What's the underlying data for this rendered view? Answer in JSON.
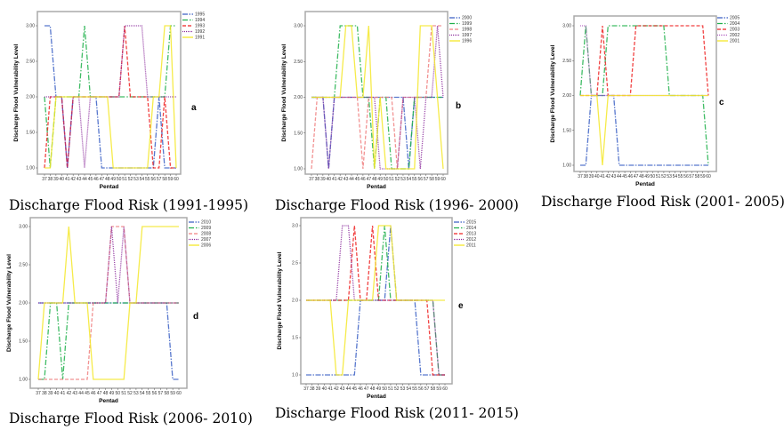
{
  "chart_data": [
    {
      "type": "line",
      "panel_label": "a",
      "caption": "Discharge Flood Risk (1991-1995)",
      "xlabel": "Pentad",
      "ylabel": "Discharge Flood Vulnerability Level",
      "x": [
        37,
        38,
        39,
        40,
        41,
        42,
        43,
        44,
        45,
        46,
        47,
        48,
        49,
        50,
        51,
        52,
        53,
        54,
        55,
        56,
        57,
        58,
        59,
        60
      ],
      "ylim": [
        1,
        3
      ],
      "yticks": [
        "1.00",
        "1.50",
        "2.00",
        "2.50",
        "3.00"
      ],
      "grid": false,
      "legend": "top-right",
      "series": [
        {
          "name": "1995",
          "color": "#3a5fc4",
          "values": [
            3,
            3,
            2,
            2,
            1,
            2,
            2,
            2,
            2,
            2,
            1,
            1,
            1,
            1,
            1,
            1,
            1,
            1,
            1,
            1,
            2,
            1,
            1,
            1
          ]
        },
        {
          "name": "1994",
          "color": "#1fb04a",
          "values": [
            2,
            1,
            2,
            2,
            2,
            2,
            2,
            3,
            2,
            2,
            2,
            2,
            2,
            2,
            2,
            2,
            2,
            2,
            2,
            2,
            2,
            2,
            3,
            3
          ]
        },
        {
          "name": "1993",
          "color": "#ee2222",
          "values": [
            1,
            2,
            2,
            2,
            1,
            2,
            2,
            2,
            2,
            2,
            2,
            2,
            2,
            2,
            3,
            2,
            2,
            2,
            2,
            1,
            1,
            2,
            1,
            1
          ]
        },
        {
          "name": "1992",
          "color": "#8b2a9b",
          "values": [
            2,
            2,
            2,
            2,
            1,
            2,
            2,
            1,
            2,
            2,
            2,
            2,
            2,
            2,
            3,
            3,
            3,
            3,
            2,
            2,
            2,
            2,
            2,
            2
          ]
        },
        {
          "name": "1991",
          "color": "#f5e82a",
          "values": [
            1,
            1,
            2,
            2,
            2,
            2,
            2,
            2,
            2,
            2,
            2,
            2,
            1,
            1,
            1,
            1,
            1,
            1,
            1,
            2,
            2,
            3,
            3,
            1
          ]
        }
      ]
    },
    {
      "type": "line",
      "panel_label": "b",
      "caption": "Discharge Flood Risk (1996- 2000)",
      "xlabel": "Pentad",
      "ylabel": "Discharge Flood Vulnerability Level",
      "x": [
        37,
        38,
        39,
        40,
        41,
        42,
        43,
        44,
        45,
        46,
        47,
        48,
        49,
        50,
        51,
        52,
        53,
        54,
        55,
        56,
        57,
        58,
        59,
        60
      ],
      "ylim": [
        1,
        3
      ],
      "yticks": [
        "1.00",
        "1.50",
        "2.00",
        "2.50",
        "3.00"
      ],
      "grid": false,
      "legend": "top-right",
      "series": [
        {
          "name": "2000",
          "color": "#3a5fc4",
          "values": [
            2,
            2,
            2,
            1,
            2,
            2,
            2,
            2,
            2,
            2,
            2,
            2,
            2,
            2,
            2,
            2,
            2,
            1,
            2,
            2,
            2,
            2,
            2,
            2
          ]
        },
        {
          "name": "1999",
          "color": "#1fb04a",
          "values": [
            2,
            2,
            2,
            2,
            2,
            3,
            3,
            3,
            3,
            2,
            2,
            1,
            2,
            2,
            1,
            1,
            1,
            1,
            2,
            2,
            2,
            2,
            2,
            2
          ]
        },
        {
          "name": "1998",
          "color": "#f08080",
          "values": [
            1,
            2,
            2,
            2,
            2,
            2,
            2,
            2,
            2,
            1,
            2,
            2,
            2,
            2,
            2,
            1,
            2,
            2,
            2,
            2,
            2,
            3,
            3,
            3
          ]
        },
        {
          "name": "1997",
          "color": "#8b2a9b",
          "values": [
            2,
            2,
            2,
            1,
            2,
            2,
            2,
            2,
            2,
            2,
            2,
            2,
            1,
            1,
            1,
            1,
            2,
            2,
            2,
            1,
            2,
            2,
            3,
            2
          ]
        },
        {
          "name": "1996",
          "color": "#f5e82a",
          "values": [
            2,
            2,
            2,
            2,
            2,
            2,
            3,
            3,
            2,
            2,
            3,
            1,
            2,
            1,
            1,
            1,
            1,
            1,
            1,
            3,
            3,
            3,
            2,
            1
          ]
        }
      ]
    },
    {
      "type": "line",
      "panel_label": "c",
      "caption": "Discharge Flood Risk (2001- 2005)",
      "xlabel": "Pentad",
      "ylabel": "Discharge Flood Vulnerability Level",
      "x": [
        37,
        38,
        39,
        40,
        41,
        42,
        43,
        44,
        45,
        46,
        47,
        48,
        49,
        50,
        51,
        52,
        53,
        54,
        55,
        56,
        57,
        58,
        59,
        60
      ],
      "ylim": [
        1,
        3
      ],
      "yticks": [
        "1.00",
        "1.50",
        "2.00",
        "2.50",
        "3.00"
      ],
      "grid": false,
      "legend": "top-right",
      "series": [
        {
          "name": "2005",
          "color": "#3a5fc4",
          "values": [
            1,
            1,
            2,
            2,
            2,
            2,
            2,
            1,
            1,
            1,
            1,
            1,
            1,
            1,
            1,
            1,
            1,
            1,
            1,
            1,
            1,
            1,
            1,
            1
          ]
        },
        {
          "name": "2004",
          "color": "#1fb04a",
          "values": [
            2,
            3,
            2,
            2,
            2,
            3,
            3,
            3,
            3,
            3,
            3,
            3,
            3,
            3,
            3,
            3,
            2,
            2,
            2,
            2,
            2,
            2,
            2,
            1
          ]
        },
        {
          "name": "2003",
          "color": "#ee2222",
          "values": [
            2,
            2,
            2,
            2,
            3,
            2,
            2,
            2,
            2,
            2,
            3,
            3,
            3,
            3,
            3,
            3,
            3,
            3,
            3,
            3,
            3,
            3,
            3,
            2
          ]
        },
        {
          "name": "2002",
          "color": "#b05ac0",
          "values": [
            3,
            3,
            2,
            2,
            2,
            2,
            2,
            2,
            2,
            2,
            2,
            2,
            2,
            2,
            2,
            2,
            2,
            2,
            2,
            2,
            2,
            2,
            2,
            2
          ]
        },
        {
          "name": "2001",
          "color": "#f5e82a",
          "values": [
            2,
            2,
            2,
            2,
            1,
            2,
            2,
            2,
            2,
            2,
            2,
            2,
            2,
            2,
            2,
            2,
            2,
            2,
            2,
            2,
            2,
            2,
            2,
            2
          ]
        }
      ]
    },
    {
      "type": "line",
      "panel_label": "d",
      "caption": "Discharge Flood Risk (2006- 2010)",
      "xlabel": "Pentad",
      "ylabel": "Discharge Flood Vulnerability Level",
      "x": [
        37,
        38,
        39,
        40,
        41,
        42,
        43,
        44,
        45,
        46,
        47,
        48,
        49,
        50,
        51,
        52,
        53,
        54,
        55,
        56,
        57,
        58,
        59,
        60
      ],
      "ylim": [
        1,
        3
      ],
      "yticks": [
        "1.00",
        "1.50",
        "2.00",
        "2.50",
        "3.00"
      ],
      "grid": false,
      "legend": "top-right",
      "series": [
        {
          "name": "2010",
          "color": "#3a5fc4",
          "values": [
            2,
            2,
            2,
            2,
            2,
            2,
            2,
            2,
            2,
            2,
            2,
            2,
            2,
            2,
            2,
            2,
            2,
            2,
            2,
            2,
            2,
            2,
            1,
            1
          ]
        },
        {
          "name": "2009",
          "color": "#1fb04a",
          "values": [
            1,
            1,
            2,
            2,
            1,
            2,
            2,
            2,
            2,
            2,
            2,
            2,
            2,
            2,
            2,
            2,
            2,
            2,
            2,
            2,
            2,
            2,
            2,
            2
          ]
        },
        {
          "name": "2008",
          "color": "#f08080",
          "values": [
            1,
            1,
            1,
            1,
            1,
            1,
            1,
            1,
            1,
            2,
            2,
            2,
            3,
            3,
            3,
            2,
            2,
            2,
            2,
            2,
            2,
            2,
            2,
            2
          ]
        },
        {
          "name": "2007",
          "color": "#8b2a9b",
          "values": [
            2,
            2,
            2,
            2,
            2,
            2,
            2,
            2,
            2,
            2,
            2,
            2,
            3,
            2,
            3,
            2,
            2,
            2,
            2,
            2,
            2,
            2,
            2,
            2
          ]
        },
        {
          "name": "2006",
          "color": "#f5e82a",
          "values": [
            1,
            2,
            2,
            2,
            2,
            3,
            2,
            2,
            2,
            1,
            1,
            1,
            1,
            1,
            1,
            2,
            2,
            3,
            3,
            3,
            3,
            3,
            3,
            3
          ]
        }
      ]
    },
    {
      "type": "line",
      "panel_label": "e",
      "caption": "Discharge Flood Risk (2011- 2015)",
      "xlabel": "Pentad",
      "ylabel": "Discharge Flood Vulnerability Level",
      "x": [
        37,
        38,
        39,
        40,
        41,
        42,
        43,
        44,
        45,
        46,
        47,
        48,
        49,
        50,
        51,
        52,
        53,
        54,
        55,
        56,
        57,
        58,
        59,
        60
      ],
      "ylim": [
        1,
        3
      ],
      "yticks": [
        "1.0",
        "1.5",
        "2.0",
        "2.5",
        "3.0"
      ],
      "grid": false,
      "legend": "top-right",
      "series": [
        {
          "name": "2015",
          "color": "#3a5fc4",
          "values": [
            1,
            1,
            1,
            1,
            1,
            1,
            1,
            1,
            1,
            2,
            2,
            2,
            2,
            2,
            3,
            2,
            2,
            2,
            2,
            1,
            1,
            1,
            1,
            1
          ]
        },
        {
          "name": "2014",
          "color": "#1fb04a",
          "values": [
            2,
            2,
            2,
            2,
            2,
            2,
            2,
            2,
            2,
            2,
            2,
            2,
            2,
            3,
            2,
            2,
            2,
            2,
            2,
            2,
            2,
            2,
            1,
            1
          ]
        },
        {
          "name": "2013",
          "color": "#ee2222",
          "values": [
            2,
            2,
            2,
            2,
            2,
            2,
            2,
            2,
            3,
            2,
            2,
            3,
            2,
            2,
            2,
            2,
            2,
            2,
            2,
            2,
            2,
            1,
            1,
            1
          ]
        },
        {
          "name": "2012",
          "color": "#8b2a9b",
          "values": [
            2,
            2,
            2,
            2,
            2,
            2,
            3,
            3,
            2,
            2,
            2,
            2,
            2,
            2,
            2,
            2,
            2,
            2,
            2,
            2,
            2,
            2,
            1,
            1
          ]
        },
        {
          "name": "2011",
          "color": "#f5e82a",
          "values": [
            2,
            2,
            2,
            2,
            2,
            1,
            1,
            2,
            2,
            2,
            2,
            2,
            3,
            3,
            3,
            2,
            2,
            2,
            2,
            2,
            2,
            2,
            2,
            2
          ]
        }
      ]
    }
  ]
}
